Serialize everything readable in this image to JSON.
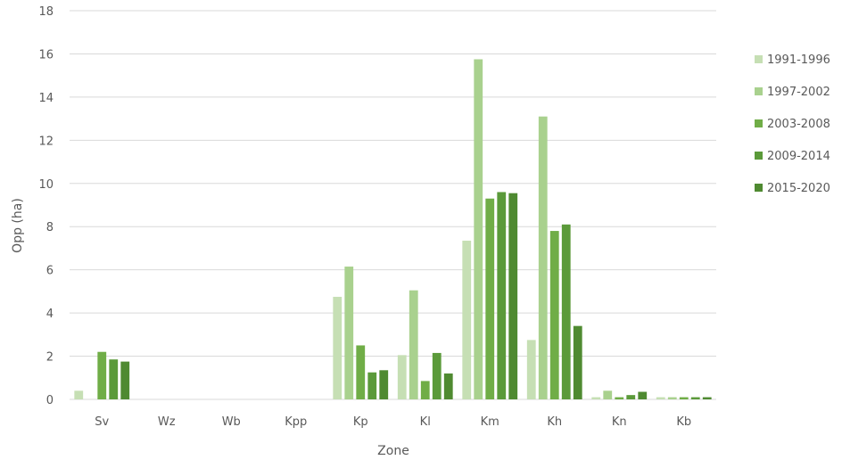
{
  "chart_data": {
    "type": "bar",
    "title": "",
    "xlabel": "Zone",
    "ylabel": "Opp (ha)",
    "ylim": [
      0,
      18
    ],
    "yticks": [
      0,
      2,
      4,
      6,
      8,
      10,
      12,
      14,
      16,
      18
    ],
    "grid": true,
    "legend_position": "right",
    "categories": [
      "Sv",
      "Wz",
      "Wb",
      "Kpp",
      "Kp",
      "Kl",
      "Km",
      "Kh",
      "Kn",
      "Kb"
    ],
    "series": [
      {
        "name": "1991-1996",
        "color": "#c6dfb4",
        "values": [
          0.4,
          0,
          0,
          0,
          4.75,
          2.05,
          7.35,
          2.75,
          0.1,
          0.1
        ]
      },
      {
        "name": "1997-2002",
        "color": "#a9d18e",
        "values": [
          0,
          0,
          0,
          0,
          6.15,
          5.05,
          15.75,
          13.1,
          0.4,
          0.1
        ]
      },
      {
        "name": "2003-2008",
        "color": "#70ad47",
        "values": [
          2.2,
          0,
          0,
          0,
          2.5,
          0.85,
          9.3,
          7.8,
          0.1,
          0.1
        ]
      },
      {
        "name": "2009-2014",
        "color": "#5b9a3a",
        "values": [
          1.85,
          0,
          0,
          0,
          1.25,
          2.15,
          9.6,
          8.1,
          0.2,
          0.1
        ]
      },
      {
        "name": "2015-2020",
        "color": "#4f8a31",
        "values": [
          1.75,
          0,
          0,
          0,
          1.35,
          1.2,
          9.55,
          3.4,
          0.35,
          0.1
        ]
      }
    ]
  }
}
